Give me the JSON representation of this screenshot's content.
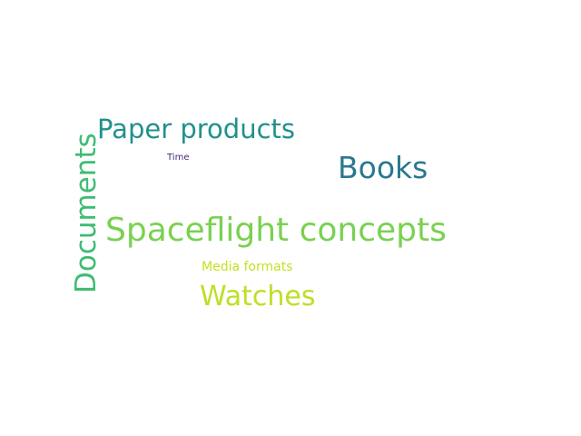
{
  "words": {
    "spaceflight": {
      "text": "Spaceflight concepts",
      "color": "#7ad151"
    },
    "books": {
      "text": "Books",
      "color": "#2a788e"
    },
    "paper": {
      "text": "Paper products",
      "color": "#21918c"
    },
    "documents": {
      "text": "Documents",
      "color": "#3fbc73"
    },
    "watches": {
      "text": "Watches",
      "color": "#bddf26"
    },
    "media": {
      "text": "Media formats",
      "color": "#c7e020"
    },
    "time": {
      "text": "Time",
      "color": "#482878"
    }
  }
}
